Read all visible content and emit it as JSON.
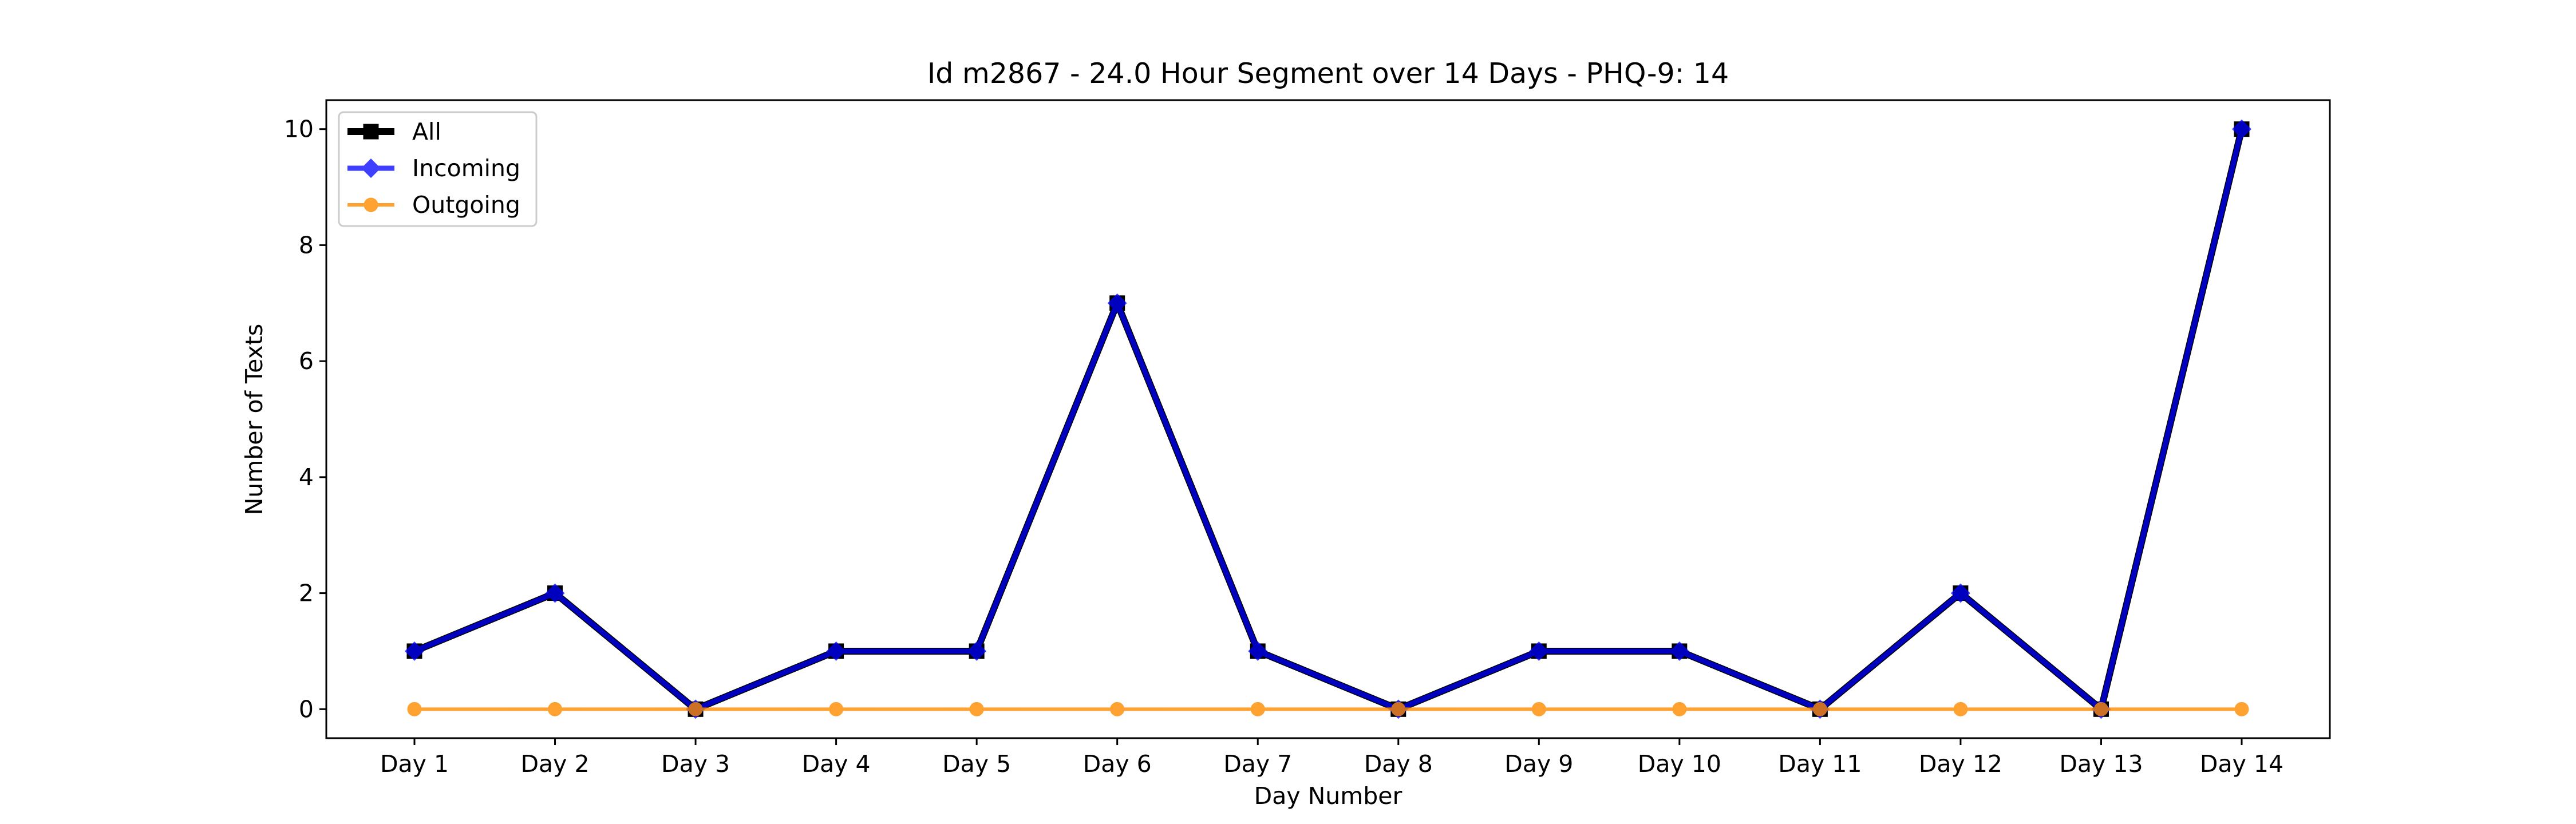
{
  "chart_data": {
    "type": "line",
    "title": "Id m2867 - 24.0 Hour Segment over 14 Days - PHQ-9: 14",
    "xlabel": "Day Number",
    "ylabel": "Number of Texts",
    "categories": [
      "Day 1",
      "Day 2",
      "Day 3",
      "Day 4",
      "Day 5",
      "Day 6",
      "Day 7",
      "Day 8",
      "Day 9",
      "Day 10",
      "Day 11",
      "Day 12",
      "Day 13",
      "Day 14"
    ],
    "yticks": [
      0,
      2,
      4,
      6,
      8,
      10
    ],
    "ylim": [
      -0.5,
      10.5
    ],
    "grid": false,
    "legend_position": "top-left",
    "series": [
      {
        "name": "All",
        "color": "#000000",
        "marker": "square",
        "values": [
          1,
          2,
          0,
          1,
          1,
          7,
          1,
          0,
          1,
          1,
          0,
          2,
          0,
          10
        ]
      },
      {
        "name": "Incoming",
        "color": "#0000ff",
        "marker": "diamond",
        "values": [
          1,
          2,
          0,
          1,
          1,
          7,
          1,
          0,
          1,
          1,
          0,
          2,
          0,
          10
        ]
      },
      {
        "name": "Outgoing",
        "color": "#ff8c00",
        "marker": "circle",
        "values": [
          0,
          0,
          0,
          0,
          0,
          0,
          0,
          0,
          0,
          0,
          0,
          0,
          0,
          0
        ]
      }
    ]
  }
}
